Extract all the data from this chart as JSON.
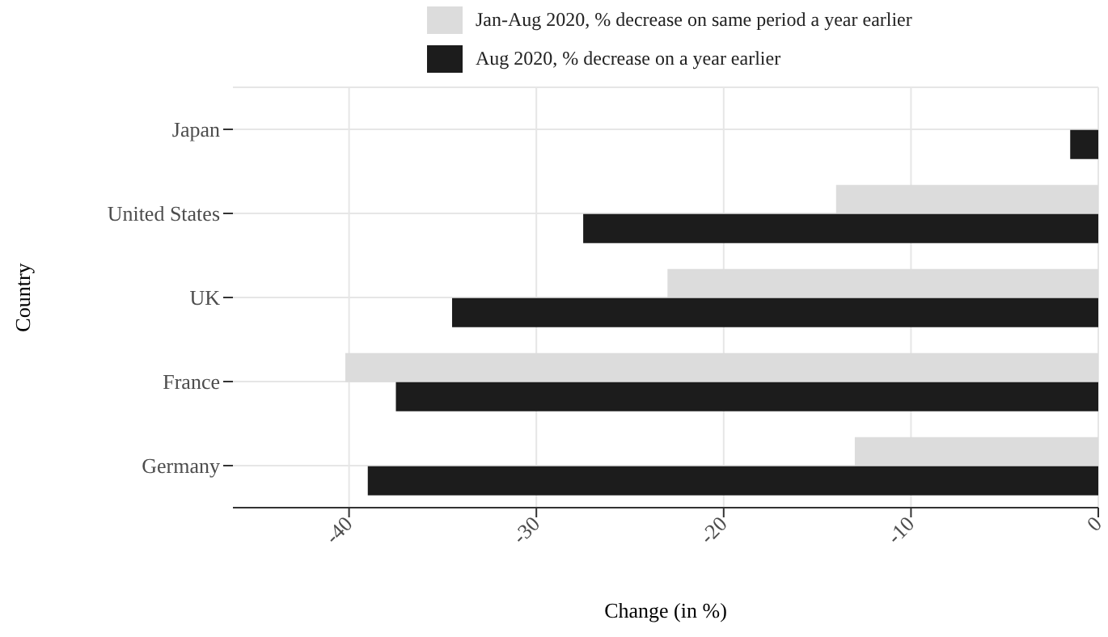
{
  "chart_data": {
    "type": "bar",
    "orientation": "horizontal",
    "xlabel": "Change (in %)",
    "ylabel": "Country",
    "categories": [
      "Japan",
      "United States",
      "UK",
      "France",
      "Germany"
    ],
    "series": [
      {
        "name": "Jan-Aug 2020, % decrease on same period a year earlier",
        "color": "#dcdcdc",
        "values": [
          null,
          -14.0,
          -23.0,
          -40.2,
          -13.0
        ]
      },
      {
        "name": "Aug 2020, % decrease on a year earlier",
        "color": "#1c1c1c",
        "values": [
          -1.5,
          -27.5,
          -34.5,
          -37.5,
          -39.0
        ]
      }
    ],
    "xlim": [
      -46.2,
      0
    ],
    "xticks": [
      -40,
      -30,
      -20,
      -10,
      0
    ],
    "grid": true,
    "legend": "top"
  }
}
